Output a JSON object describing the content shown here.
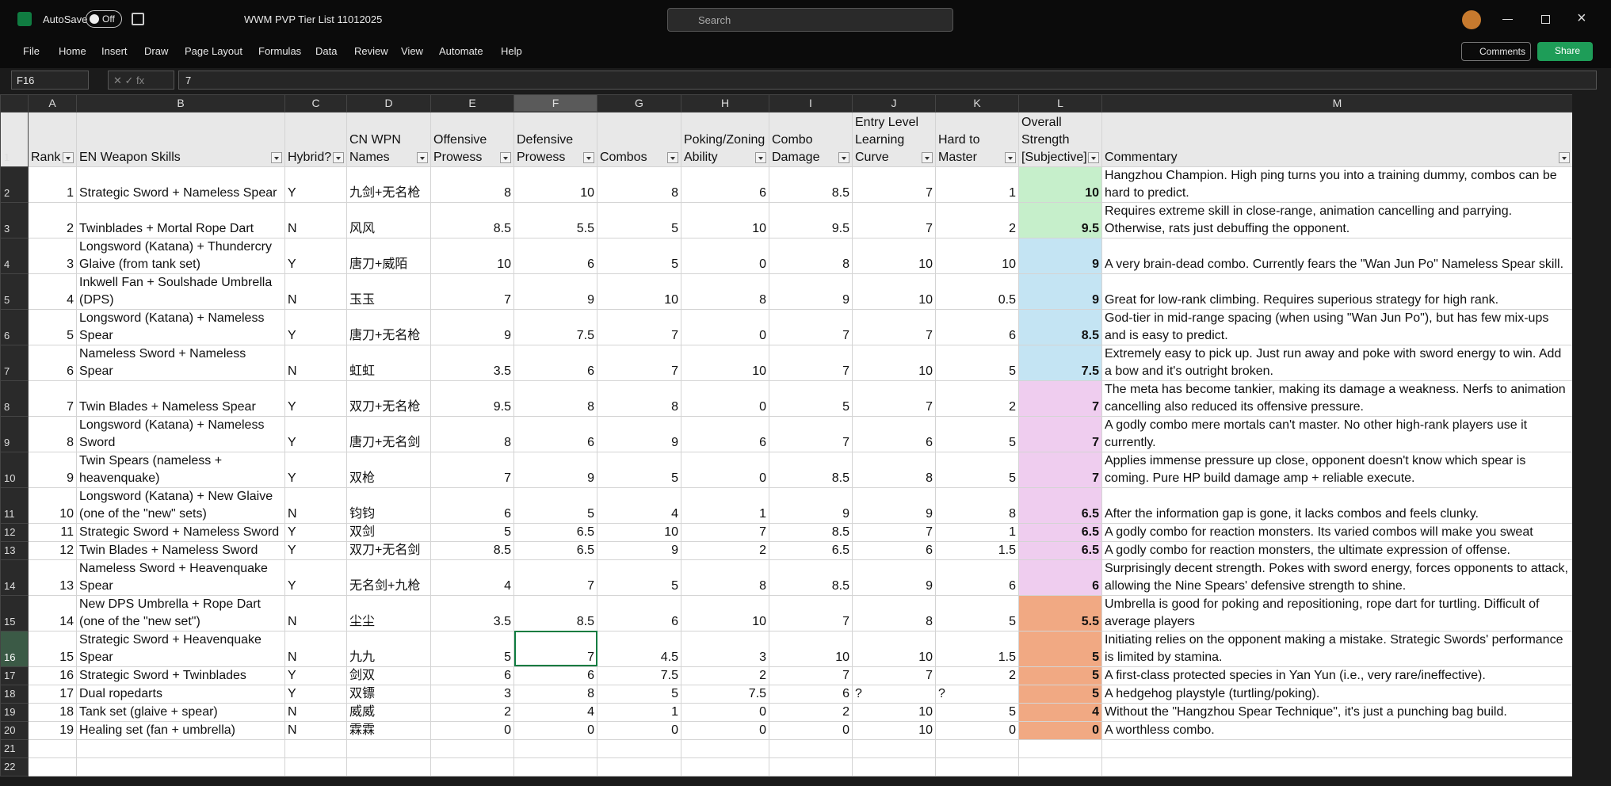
{
  "app": {
    "autosave": "AutoSave",
    "autosave_state": "Off",
    "file_name": "WWM PVP Tier List 11012025",
    "search": "Search",
    "comments": "Comments",
    "share": "Share"
  },
  "menu": [
    "File",
    "Home",
    "Insert",
    "Draw",
    "Page Layout",
    "Formulas",
    "Data",
    "Review",
    "View",
    "Automate",
    "Help"
  ],
  "formula_bar": {
    "name_box": "F16",
    "formula": "7"
  },
  "table": {
    "columns": [
      "A",
      "B",
      "C",
      "D",
      "E",
      "F",
      "G",
      "H",
      "I",
      "J",
      "K",
      "L",
      "M"
    ],
    "row_numbers": [
      1,
      2,
      3,
      4,
      5,
      6,
      7,
      8,
      9,
      10,
      11,
      12,
      13,
      14,
      15,
      16,
      17,
      18,
      19,
      20,
      21,
      22
    ],
    "header": [
      "Rank",
      "EN Weapon Skills",
      "Hybrid?",
      "CN WPN Names",
      "Offensive Prowess",
      "Defensive Prowess",
      "Combos",
      "Poking/Zoning Ability",
      "Combo Damage",
      "Entry Level Learning Curve",
      "Hard to Master",
      "Overall Strength [Subjective]",
      "Commentary"
    ],
    "rows": [
      [
        1,
        "Strategic Sword + Nameless Spear",
        "Y",
        "九剑+无名枪",
        8,
        10,
        8,
        6,
        8.5,
        7,
        1,
        10,
        "Hangzhou Champion. High ping turns you into a training dummy, combos can be hard to predict."
      ],
      [
        2,
        "Twinblades + Mortal Rope Dart",
        "N",
        "风风",
        8.5,
        5.5,
        5,
        10,
        9.5,
        7,
        2,
        9.5,
        "Requires extreme skill in close-range, animation cancelling and parrying. Otherwise, rats just debuffing the opponent."
      ],
      [
        3,
        "Longsword (Katana) + Thundercry Glaive (from tank set)",
        "Y",
        "唐刀+威陌",
        10,
        6,
        5,
        0,
        8,
        10,
        10,
        9,
        "A very brain-dead combo. Currently fears the \"Wan Jun Po\" Nameless Spear skill."
      ],
      [
        4,
        "Inkwell Fan + Soulshade Umbrella (DPS)",
        "N",
        "玉玉",
        7,
        9,
        10,
        8,
        9,
        10,
        0.5,
        9,
        "Great for low-rank climbing. Requires superious strategy for high rank."
      ],
      [
        5,
        "Longsword (Katana) + Nameless Spear",
        "Y",
        "唐刀+无名枪",
        9,
        7.5,
        7,
        0,
        7,
        7,
        6,
        8.5,
        "God-tier in mid-range spacing (when using \"Wan Jun Po\"), but has few mix-ups and is easy to predict."
      ],
      [
        6,
        "Nameless Sword + Nameless Spear",
        "N",
        "虹虹",
        3.5,
        6,
        7,
        10,
        7,
        10,
        5,
        7.5,
        "Extremely easy to pick up. Just run away and poke with sword energy to win. Add a bow and it's outright broken."
      ],
      [
        7,
        "Twin Blades + Nameless Spear",
        "Y",
        "双刀+无名枪",
        9.5,
        8,
        8,
        0,
        5,
        7,
        2,
        7,
        "The meta has become tankier, making its damage a weakness. Nerfs to animation cancelling also reduced its offensive pressure."
      ],
      [
        8,
        "Longsword (Katana) + Nameless Sword",
        "Y",
        "唐刀+无名剑",
        8,
        6,
        9,
        6,
        7,
        6,
        5,
        7,
        "A godly combo mere mortals can't master. No other high-rank players use it currently."
      ],
      [
        9,
        "Twin Spears (nameless + heavenquake)",
        "Y",
        "双枪",
        7,
        9,
        5,
        0,
        8.5,
        8,
        5,
        7,
        "Applies immense pressure up close, opponent doesn't know which spear is coming. Pure HP build damage amp + reliable execute."
      ],
      [
        10,
        "Longsword (Katana) + New Glaive (one of the \"new\" sets)",
        "N",
        "钧钧",
        6,
        5,
        4,
        1,
        9,
        9,
        8,
        6.5,
        "After the information gap is gone, it lacks combos and feels clunky."
      ],
      [
        11,
        "Strategic Sword + Nameless Sword",
        "Y",
        "双剑",
        5,
        6.5,
        10,
        7,
        8.5,
        7,
        1,
        6.5,
        "A godly combo for reaction monsters. Its varied combos will make you sweat"
      ],
      [
        12,
        "Twin Blades + Nameless Sword",
        "Y",
        "双刀+无名剑",
        8.5,
        6.5,
        9,
        2,
        6.5,
        6,
        1.5,
        6.5,
        "A godly combo for reaction monsters, the ultimate expression of offense."
      ],
      [
        13,
        "Nameless Sword + Heavenquake Spear",
        "Y",
        "无名剑+九枪",
        4,
        7,
        5,
        8,
        8.5,
        9,
        6,
        6,
        "Surprisingly decent strength. Pokes with sword energy, forces opponents to attack, allowing the Nine Spears' defensive strength to shine."
      ],
      [
        14,
        "New DPS Umbrella + Rope Dart (one of the \"new set\")",
        "N",
        "尘尘",
        3.5,
        8.5,
        6,
        10,
        7,
        8,
        5,
        5.5,
        "Umbrella is good for poking and repositioning, rope dart for turtling. Difficult of average players"
      ],
      [
        15,
        "Strategic Sword + Heavenquake Spear",
        "N",
        "九九",
        5,
        7,
        4.5,
        3,
        10,
        10,
        1.5,
        5,
        "Initiating relies on the opponent making a mistake. Strategic Swords' performance is limited by stamina."
      ],
      [
        16,
        "Strategic Sword + Twinblades",
        "Y",
        "剑双",
        6,
        6,
        7.5,
        2,
        7,
        7,
        2,
        5,
        "A first-class protected species in Yan Yun (i.e., very rare/ineffective)."
      ],
      [
        17,
        "Dual ropedarts",
        "Y",
        "双镖",
        3,
        8,
        5,
        7.5,
        6,
        "?",
        "?",
        5,
        "A hedgehog playstyle (turtling/poking)."
      ],
      [
        18,
        "Tank set (glaive + spear)",
        "N",
        "威威",
        2,
        4,
        1,
        0,
        2,
        10,
        5,
        4,
        "Without the \"Hangzhou Spear Technique\", it's just a punching bag build."
      ],
      [
        19,
        "Healing set (fan + umbrella)",
        "N",
        "霖霖",
        0,
        0,
        0,
        0,
        0,
        10,
        0,
        0,
        "A worthless combo."
      ]
    ],
    "overall_fill": [
      "#c6efcb",
      "#c6efcb",
      "#c4e4f3",
      "#c4e4f3",
      "#c4e4f3",
      "#c4e4f3",
      "#efcdef",
      "#efcdef",
      "#efcdef",
      "#efcdef",
      "#efcdef",
      "#efcdef",
      "#efcdef",
      "#f1a983",
      "#f1a983",
      "#f1a983",
      "#f1a983",
      "#f1a983",
      "#f1a983"
    ]
  }
}
